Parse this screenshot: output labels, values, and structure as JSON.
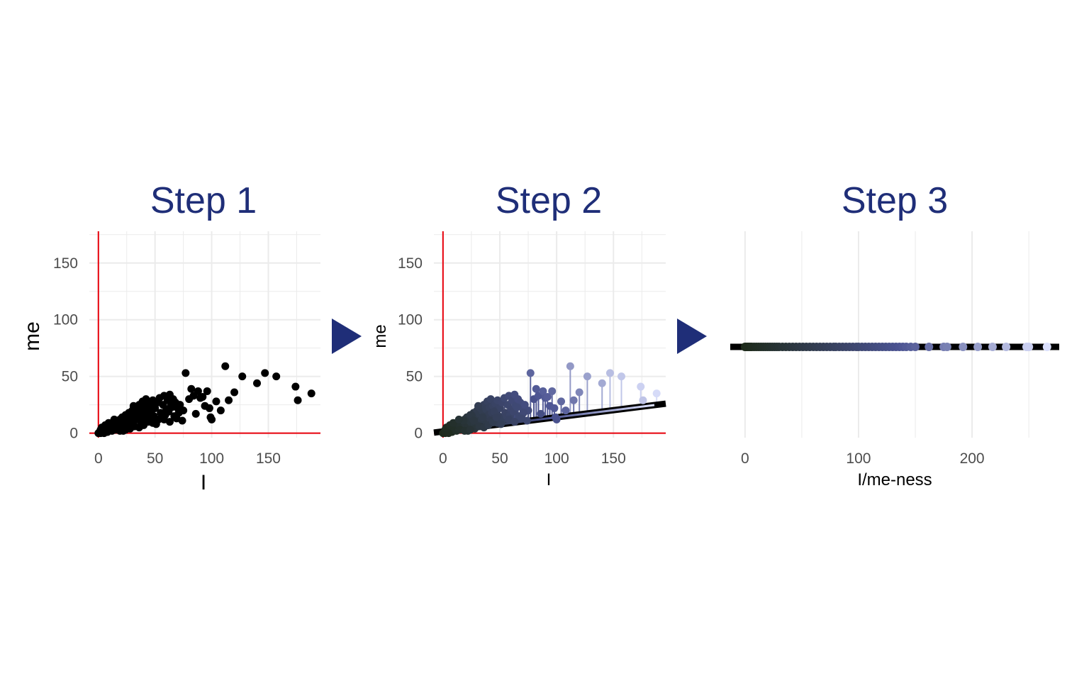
{
  "colors": {
    "title": "#1f2e78",
    "arrow": "#1f2e78",
    "reference_line": "#e8000b",
    "grid": "#ebebeb",
    "points_step1": "#000000",
    "gradient_low": "#1d2a1a",
    "gradient_mid": "#4a5290",
    "gradient_high": "#dfe4ff",
    "fit_line": "#000000"
  },
  "arrow_icon": "triangle-right-icon",
  "chart_data": [
    {
      "type": "scatter",
      "title": "Step 1",
      "xlabel": "I",
      "ylabel": "me",
      "xlim": [
        -8,
        196
      ],
      "ylim": [
        -4,
        178
      ],
      "xticks": [
        0,
        50,
        100,
        150
      ],
      "yticks": [
        0,
        50,
        100,
        150
      ],
      "grid": true,
      "reference_lines": {
        "x": 0,
        "y": 0
      },
      "points": [
        [
          0,
          0
        ],
        [
          1,
          1
        ],
        [
          2,
          0
        ],
        [
          3,
          2
        ],
        [
          4,
          1
        ],
        [
          5,
          3
        ],
        [
          6,
          2
        ],
        [
          7,
          4
        ],
        [
          8,
          1
        ],
        [
          9,
          5
        ],
        [
          10,
          3
        ],
        [
          11,
          6
        ],
        [
          12,
          2
        ],
        [
          13,
          7
        ],
        [
          14,
          4
        ],
        [
          15,
          8
        ],
        [
          16,
          5
        ],
        [
          17,
          10
        ],
        [
          18,
          6
        ],
        [
          19,
          12
        ],
        [
          20,
          7
        ],
        [
          21,
          14
        ],
        [
          22,
          5
        ],
        [
          23,
          11
        ],
        [
          24,
          16
        ],
        [
          25,
          9
        ],
        [
          26,
          13
        ],
        [
          27,
          18
        ],
        [
          28,
          8
        ],
        [
          29,
          15
        ],
        [
          30,
          20
        ],
        [
          31,
          10
        ],
        [
          32,
          17
        ],
        [
          33,
          22
        ],
        [
          34,
          12
        ],
        [
          35,
          19
        ],
        [
          36,
          25
        ],
        [
          37,
          14
        ],
        [
          38,
          21
        ],
        [
          39,
          28
        ],
        [
          40,
          16
        ],
        [
          41,
          23
        ],
        [
          42,
          30
        ],
        [
          43,
          18
        ],
        [
          44,
          24
        ],
        [
          45,
          13
        ],
        [
          46,
          26
        ],
        [
          47,
          20
        ],
        [
          48,
          29
        ],
        [
          49,
          15
        ],
        [
          50,
          22
        ],
        [
          52,
          27
        ],
        [
          54,
          31
        ],
        [
          55,
          18
        ],
        [
          57,
          25
        ],
        [
          58,
          33
        ],
        [
          60,
          21
        ],
        [
          61,
          29
        ],
        [
          63,
          34
        ],
        [
          64,
          24
        ],
        [
          66,
          30
        ],
        [
          68,
          27
        ],
        [
          70,
          22
        ],
        [
          72,
          25
        ],
        [
          75,
          20
        ],
        [
          77,
          53
        ],
        [
          80,
          30
        ],
        [
          82,
          39
        ],
        [
          84,
          33
        ],
        [
          86,
          17
        ],
        [
          88,
          37
        ],
        [
          90,
          31
        ],
        [
          92,
          32
        ],
        [
          94,
          24
        ],
        [
          96,
          37
        ],
        [
          98,
          22
        ],
        [
          99,
          14
        ],
        [
          100,
          12
        ],
        [
          104,
          28
        ],
        [
          108,
          20
        ],
        [
          112,
          59
        ],
        [
          115,
          29
        ],
        [
          120,
          36
        ],
        [
          127,
          50
        ],
        [
          140,
          44
        ],
        [
          147,
          53
        ],
        [
          157,
          50
        ],
        [
          174,
          41
        ],
        [
          176,
          29
        ],
        [
          188,
          35
        ],
        [
          2,
          3
        ],
        [
          5,
          0
        ],
        [
          8,
          6
        ],
        [
          12,
          9
        ],
        [
          15,
          3
        ],
        [
          18,
          11
        ],
        [
          22,
          2
        ],
        [
          25,
          16
        ],
        [
          28,
          4
        ],
        [
          32,
          6
        ],
        [
          35,
          14
        ],
        [
          38,
          8
        ],
        [
          42,
          11
        ],
        [
          45,
          19
        ],
        [
          48,
          9
        ],
        [
          53,
          12
        ],
        [
          56,
          15
        ],
        [
          59,
          16
        ],
        [
          62,
          19
        ],
        [
          65,
          23
        ],
        [
          67,
          15
        ],
        [
          71,
          18
        ],
        [
          74,
          11
        ],
        [
          3,
          5
        ],
        [
          6,
          7
        ],
        [
          9,
          9
        ],
        [
          14,
          12
        ],
        [
          19,
          2
        ],
        [
          24,
          3
        ],
        [
          27,
          11
        ],
        [
          31,
          24
        ],
        [
          36,
          5
        ],
        [
          40,
          7
        ],
        [
          44,
          10
        ],
        [
          47,
          14
        ],
        [
          51,
          8
        ],
        [
          58,
          12
        ],
        [
          63,
          10
        ],
        [
          69,
          13
        ]
      ]
    },
    {
      "type": "scatter",
      "title": "Step 2",
      "xlabel": "I",
      "ylabel": "me",
      "xlim": [
        -8,
        196
      ],
      "ylim": [
        -4,
        178
      ],
      "xticks": [
        0,
        50,
        100,
        150
      ],
      "yticks": [
        0,
        50,
        100,
        150
      ],
      "grid": true,
      "reference_lines": {
        "x": 0,
        "y": 0
      },
      "fit_line": {
        "intercept": 1.5,
        "slope": 0.125
      },
      "points": [
        [
          0,
          0
        ],
        [
          1,
          1
        ],
        [
          2,
          0
        ],
        [
          3,
          2
        ],
        [
          4,
          1
        ],
        [
          5,
          3
        ],
        [
          6,
          2
        ],
        [
          7,
          4
        ],
        [
          8,
          1
        ],
        [
          9,
          5
        ],
        [
          10,
          3
        ],
        [
          11,
          6
        ],
        [
          12,
          2
        ],
        [
          13,
          7
        ],
        [
          14,
          4
        ],
        [
          15,
          8
        ],
        [
          16,
          5
        ],
        [
          17,
          10
        ],
        [
          18,
          6
        ],
        [
          19,
          12
        ],
        [
          20,
          7
        ],
        [
          21,
          14
        ],
        [
          22,
          5
        ],
        [
          23,
          11
        ],
        [
          24,
          16
        ],
        [
          25,
          9
        ],
        [
          26,
          13
        ],
        [
          27,
          18
        ],
        [
          28,
          8
        ],
        [
          29,
          15
        ],
        [
          30,
          20
        ],
        [
          31,
          10
        ],
        [
          32,
          17
        ],
        [
          33,
          22
        ],
        [
          34,
          12
        ],
        [
          35,
          19
        ],
        [
          36,
          25
        ],
        [
          37,
          14
        ],
        [
          38,
          21
        ],
        [
          39,
          28
        ],
        [
          40,
          16
        ],
        [
          41,
          23
        ],
        [
          42,
          30
        ],
        [
          43,
          18
        ],
        [
          44,
          24
        ],
        [
          45,
          13
        ],
        [
          46,
          26
        ],
        [
          47,
          20
        ],
        [
          48,
          29
        ],
        [
          49,
          15
        ],
        [
          50,
          22
        ],
        [
          52,
          27
        ],
        [
          54,
          31
        ],
        [
          55,
          18
        ],
        [
          57,
          25
        ],
        [
          58,
          33
        ],
        [
          60,
          21
        ],
        [
          61,
          29
        ],
        [
          63,
          34
        ],
        [
          64,
          24
        ],
        [
          66,
          30
        ],
        [
          68,
          27
        ],
        [
          70,
          22
        ],
        [
          72,
          25
        ],
        [
          75,
          20
        ],
        [
          77,
          53
        ],
        [
          80,
          30
        ],
        [
          82,
          39
        ],
        [
          84,
          33
        ],
        [
          86,
          17
        ],
        [
          88,
          37
        ],
        [
          90,
          31
        ],
        [
          92,
          32
        ],
        [
          94,
          24
        ],
        [
          96,
          37
        ],
        [
          98,
          22
        ],
        [
          99,
          14
        ],
        [
          100,
          12
        ],
        [
          104,
          28
        ],
        [
          108,
          20
        ],
        [
          112,
          59
        ],
        [
          115,
          29
        ],
        [
          120,
          36
        ],
        [
          127,
          50
        ],
        [
          140,
          44
        ],
        [
          147,
          53
        ],
        [
          157,
          50
        ],
        [
          174,
          41
        ],
        [
          176,
          29
        ],
        [
          188,
          35
        ],
        [
          2,
          3
        ],
        [
          5,
          0
        ],
        [
          8,
          6
        ],
        [
          12,
          9
        ],
        [
          15,
          3
        ],
        [
          18,
          11
        ],
        [
          22,
          2
        ],
        [
          25,
          16
        ],
        [
          28,
          4
        ],
        [
          32,
          6
        ],
        [
          35,
          14
        ],
        [
          38,
          8
        ],
        [
          42,
          11
        ],
        [
          45,
          19
        ],
        [
          48,
          9
        ],
        [
          53,
          12
        ],
        [
          56,
          15
        ],
        [
          59,
          16
        ],
        [
          62,
          19
        ],
        [
          65,
          23
        ],
        [
          67,
          15
        ],
        [
          71,
          18
        ],
        [
          74,
          11
        ],
        [
          3,
          5
        ],
        [
          6,
          7
        ],
        [
          9,
          9
        ],
        [
          14,
          12
        ],
        [
          19,
          2
        ],
        [
          24,
          3
        ],
        [
          27,
          11
        ],
        [
          31,
          24
        ],
        [
          36,
          5
        ],
        [
          40,
          7
        ],
        [
          44,
          10
        ],
        [
          47,
          14
        ],
        [
          51,
          8
        ],
        [
          58,
          12
        ],
        [
          63,
          10
        ],
        [
          69,
          13
        ]
      ]
    },
    {
      "type": "scatter",
      "title": "Step 3",
      "xlabel": "I/me-ness",
      "ylabel": "",
      "xlim": [
        -13,
        278
      ],
      "xticks": [
        0,
        100,
        200
      ],
      "grid": true,
      "values": [
        0,
        1,
        2,
        3,
        4,
        5,
        6,
        8,
        10,
        12,
        14,
        16,
        18,
        20,
        22,
        24,
        26,
        28,
        30,
        33,
        36,
        39,
        42,
        45,
        48,
        51,
        54,
        57,
        60,
        63,
        66,
        69,
        72,
        75,
        78,
        80,
        83,
        86,
        89,
        92,
        95,
        98,
        100,
        103,
        106,
        109,
        112,
        115,
        118,
        121,
        124,
        127,
        130,
        133,
        136,
        139,
        142,
        146,
        150,
        162,
        175,
        178,
        192,
        205,
        218,
        230,
        248,
        250,
        266
      ]
    }
  ]
}
